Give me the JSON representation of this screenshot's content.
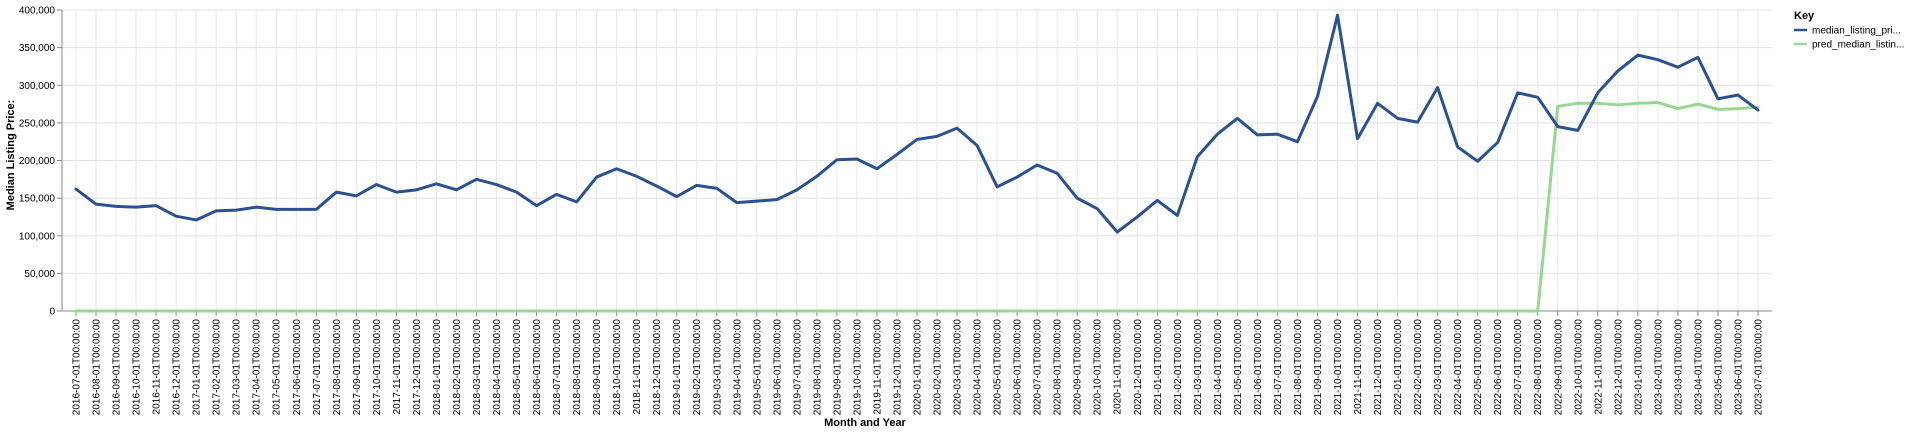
{
  "chart_data": {
    "type": "line",
    "xlabel": "Month and Year",
    "ylabel": "Median Listing Price:",
    "ylim": [
      0,
      400000
    ],
    "y_ticks": [
      "0",
      "50,000",
      "100,000",
      "150,000",
      "200,000",
      "250,000",
      "300,000",
      "350,000",
      "400,000"
    ],
    "grid": true,
    "legend": {
      "title": "Key",
      "placement": "top-right"
    },
    "x": [
      "2016-07-01T00:00:00",
      "2016-08-01T00:00:00",
      "2016-09-01T00:00:00",
      "2016-10-01T00:00:00",
      "2016-11-01T00:00:00",
      "2016-12-01T00:00:00",
      "2017-01-01T00:00:00",
      "2017-02-01T00:00:00",
      "2017-03-01T00:00:00",
      "2017-04-01T00:00:00",
      "2017-05-01T00:00:00",
      "2017-06-01T00:00:00",
      "2017-07-01T00:00:00",
      "2017-08-01T00:00:00",
      "2017-09-01T00:00:00",
      "2017-10-01T00:00:00",
      "2017-11-01T00:00:00",
      "2017-12-01T00:00:00",
      "2018-01-01T00:00:00",
      "2018-02-01T00:00:00",
      "2018-03-01T00:00:00",
      "2018-04-01T00:00:00",
      "2018-05-01T00:00:00",
      "2018-06-01T00:00:00",
      "2018-07-01T00:00:00",
      "2018-08-01T00:00:00",
      "2018-09-01T00:00:00",
      "2018-10-01T00:00:00",
      "2018-11-01T00:00:00",
      "2018-12-01T00:00:00",
      "2019-01-01T00:00:00",
      "2019-02-01T00:00:00",
      "2019-03-01T00:00:00",
      "2019-04-01T00:00:00",
      "2019-05-01T00:00:00",
      "2019-06-01T00:00:00",
      "2019-07-01T00:00:00",
      "2019-08-01T00:00:00",
      "2019-09-01T00:00:00",
      "2019-10-01T00:00:00",
      "2019-11-01T00:00:00",
      "2019-12-01T00:00:00",
      "2020-01-01T00:00:00",
      "2020-02-01T00:00:00",
      "2020-03-01T00:00:00",
      "2020-04-01T00:00:00",
      "2020-05-01T00:00:00",
      "2020-06-01T00:00:00",
      "2020-07-01T00:00:00",
      "2020-08-01T00:00:00",
      "2020-09-01T00:00:00",
      "2020-10-01T00:00:00",
      "2020-11-01T00:00:00",
      "2020-12-01T00:00:00",
      "2021-01-01T00:00:00",
      "2021-02-01T00:00:00",
      "2021-03-01T00:00:00",
      "2021-04-01T00:00:00",
      "2021-05-01T00:00:00",
      "2021-06-01T00:00:00",
      "2021-07-01T00:00:00",
      "2021-08-01T00:00:00",
      "2021-09-01T00:00:00",
      "2021-10-01T00:00:00",
      "2021-11-01T00:00:00",
      "2021-12-01T00:00:00",
      "2022-01-01T00:00:00",
      "2022-02-01T00:00:00",
      "2022-03-01T00:00:00",
      "2022-04-01T00:00:00",
      "2022-05-01T00:00:00",
      "2022-06-01T00:00:00",
      "2022-07-01T00:00:00",
      "2022-08-01T00:00:00",
      "2022-09-01T00:00:00",
      "2022-10-01T00:00:00",
      "2022-11-01T00:00:00",
      "2022-12-01T00:00:00",
      "2023-01-01T00:00:00",
      "2023-02-01T00:00:00",
      "2023-03-01T00:00:00",
      "2023-04-01T00:00:00",
      "2023-05-01T00:00:00",
      "2023-06-01T00:00:00",
      "2023-07-01T00:00:00"
    ],
    "series": [
      {
        "name": "median_listing_pri...",
        "color": "#2c5193",
        "values": [
          162000,
          142000,
          139000,
          138000,
          140000,
          126000,
          121000,
          133000,
          134000,
          138000,
          135000,
          135000,
          135000,
          158000,
          153000,
          168000,
          158000,
          161000,
          169000,
          161000,
          175000,
          168000,
          158000,
          140000,
          155000,
          145000,
          178000,
          189000,
          179000,
          166000,
          152000,
          167000,
          163000,
          144000,
          146000,
          148000,
          161000,
          179000,
          201000,
          202000,
          189000,
          208000,
          228000,
          232000,
          243000,
          220000,
          165000,
          178000,
          194000,
          183000,
          150000,
          136000,
          105000,
          125000,
          147000,
          127000,
          205000,
          235000,
          256000,
          234000,
          235000,
          225000,
          285000,
          393000,
          229000,
          276000,
          256000,
          251000,
          297000,
          218000,
          199000,
          224000,
          290000,
          284000,
          245000,
          240000,
          290000,
          319000,
          340000,
          334000,
          324000,
          337000,
          282000,
          287000,
          267000
        ]
      },
      {
        "name": "pred_median_listin...",
        "color": "#98d793",
        "values": [
          0,
          0,
          0,
          0,
          0,
          0,
          0,
          0,
          0,
          0,
          0,
          0,
          0,
          0,
          0,
          0,
          0,
          0,
          0,
          0,
          0,
          0,
          0,
          0,
          0,
          0,
          0,
          0,
          0,
          0,
          0,
          0,
          0,
          0,
          0,
          0,
          0,
          0,
          0,
          0,
          0,
          0,
          0,
          0,
          0,
          0,
          0,
          0,
          0,
          0,
          0,
          0,
          0,
          0,
          0,
          0,
          0,
          0,
          0,
          0,
          0,
          0,
          0,
          0,
          0,
          0,
          0,
          0,
          0,
          0,
          0,
          0,
          0,
          0,
          272000,
          276000,
          276000,
          274000,
          276000,
          277000,
          269000,
          275000,
          268000,
          269000,
          271000
        ]
      }
    ]
  }
}
